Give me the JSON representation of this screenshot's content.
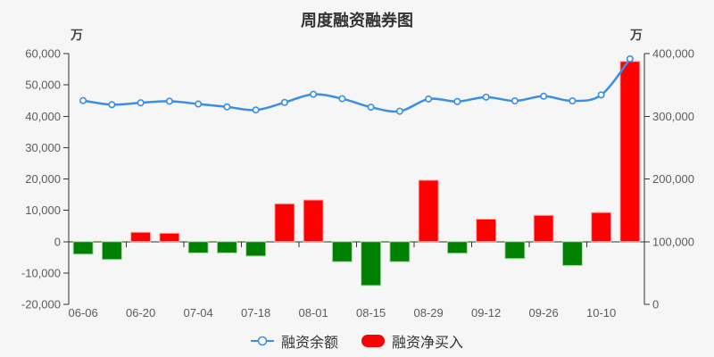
{
  "chart_data": {
    "type": "combo",
    "title": "周度融资融券图",
    "unit_left": "万",
    "unit_right": "万",
    "categories": [
      "06-06",
      "",
      "06-20",
      "",
      "07-04",
      "",
      "07-18",
      "",
      "08-01",
      "",
      "08-15",
      "",
      "08-29",
      "",
      "09-12",
      "",
      "09-26",
      "",
      "10-10",
      ""
    ],
    "visible_x_labels": [
      "06-06",
      "06-20",
      "07-04",
      "07-18",
      "08-01",
      "08-15",
      "08-29",
      "09-12",
      "09-26",
      "10-10"
    ],
    "series": [
      {
        "name": "融资余额",
        "type": "line",
        "axis": "right",
        "values": [
          325000,
          318500,
          321500,
          324000,
          319500,
          315000,
          310000,
          322000,
          335000,
          328000,
          314500,
          308000,
          327500,
          323500,
          330500,
          324500,
          332000,
          324500,
          334000,
          391500
        ]
      },
      {
        "name": "融资净买入",
        "type": "bar",
        "axis": "left",
        "values": [
          -4000,
          -5700,
          3000,
          2700,
          -3600,
          -3600,
          -4600,
          12100,
          13300,
          -6400,
          -14000,
          -6400,
          19600,
          -3700,
          7200,
          -5400,
          8400,
          -7600,
          9300,
          57500
        ]
      }
    ],
    "axes": {
      "left": {
        "min": -20000,
        "max": 60000,
        "tick_values": [
          60000,
          50000,
          40000,
          30000,
          20000,
          10000,
          0,
          -10000,
          -20000
        ]
      },
      "right": {
        "min": 0,
        "max": 400000,
        "tick_values": [
          400000,
          300000,
          200000,
          100000,
          0
        ]
      }
    },
    "legend": [
      "融资余额",
      "融资净买入"
    ],
    "grid": false,
    "legend_position": "bottom-center",
    "colors": {
      "line": "#3a8ee6",
      "line_marker_fill": "#ffffff",
      "bar_positive": "#ff0000",
      "bar_positive_border": "#ffb0b0",
      "bar_negative": "#008000",
      "bar_negative_border": "#a6d8a6",
      "axis_line": "#333333",
      "axis_label": "#5c5c5c",
      "title": "#333333",
      "background": "#f6f6f6"
    }
  }
}
